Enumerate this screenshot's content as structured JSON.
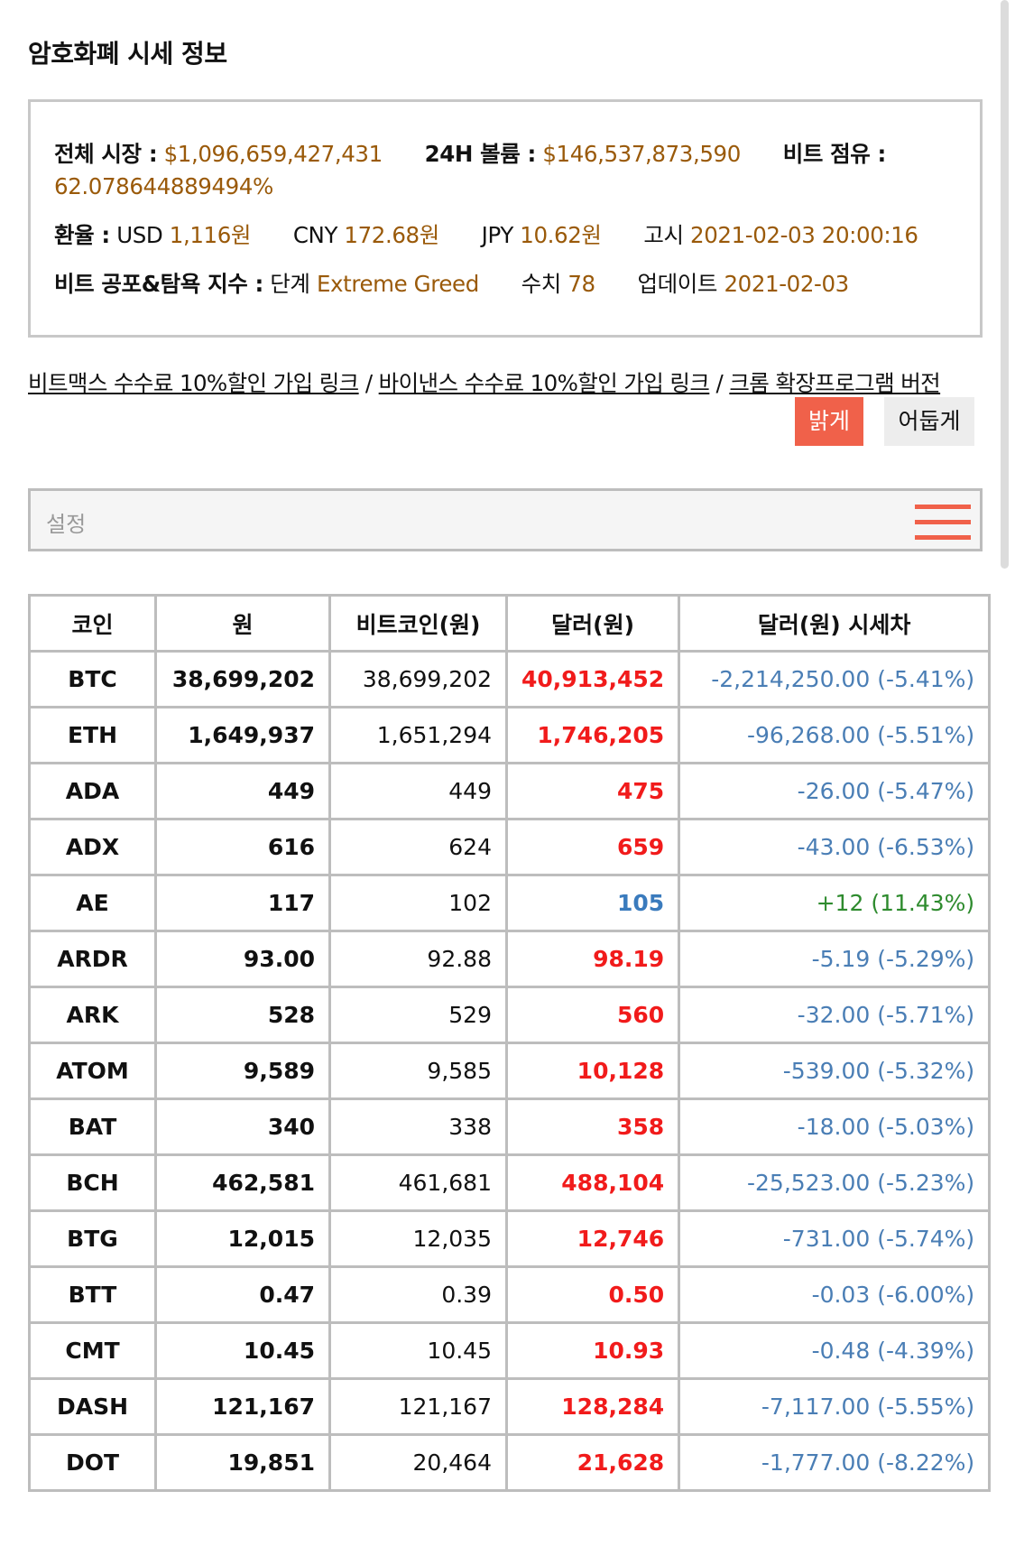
{
  "page": {
    "title": "암호화폐 시세 정보"
  },
  "market": {
    "total_label": "전체 시장 :",
    "total_value": "$1,096,659,427,431",
    "volume_label": "24H 볼륨 :",
    "volume_value": "$146,537,873,590",
    "dominance_label": "비트 점유 :",
    "dominance_value": "62.078644889494%",
    "fx_label": "환율 :",
    "usd_label": "USD",
    "usd_value": "1,116원",
    "cny_label": "CNY",
    "cny_value": "172.68원",
    "jpy_label": "JPY",
    "jpy_value": "10.62원",
    "notice_label": "고시",
    "notice_value": "2021-02-03 20:00:16",
    "fear_label": "비트 공포&탐욕 지수 :",
    "stage_label": "단계",
    "stage_value": "Extreme Greed",
    "score_label": "수치",
    "score_value": "78",
    "update_label": "업데이트",
    "update_value": "2021-02-03"
  },
  "links": {
    "bitmax": "비트맥스 수수료 10%할인 가입 링크",
    "sep1": " / ",
    "binance": "바이낸스 수수료 10%할인 가입 링크",
    "sep2": " / ",
    "chrome": "크롬 확장프로그램 버전"
  },
  "theme": {
    "light": "밝게",
    "dark": "어둡게"
  },
  "settings": {
    "label": "설정"
  },
  "colors": {
    "accent": "#f0614a",
    "up": "#f11b1b",
    "down": "#4a7eb5",
    "positive": "#2e8b2e",
    "gold": "#9a5a0a"
  },
  "icons": {
    "menu": "hamburger-menu-icon"
  },
  "table": {
    "headers": [
      "코인",
      "원",
      "비트코인(원)",
      "달러(원)",
      "달러(원) 시세차"
    ],
    "rows": [
      {
        "coin": "BTC",
        "krw": "38,699,202",
        "btc_krw": "38,699,202",
        "usd_krw": "40,913,452",
        "usd_color": "red",
        "diff": "-2,214,250.00 (-5.41%)",
        "diff_sign": "neg"
      },
      {
        "coin": "ETH",
        "krw": "1,649,937",
        "btc_krw": "1,651,294",
        "usd_krw": "1,746,205",
        "usd_color": "red",
        "diff": "-96,268.00 (-5.51%)",
        "diff_sign": "neg"
      },
      {
        "coin": "ADA",
        "krw": "449",
        "btc_krw": "449",
        "usd_krw": "475",
        "usd_color": "red",
        "diff": "-26.00 (-5.47%)",
        "diff_sign": "neg"
      },
      {
        "coin": "ADX",
        "krw": "616",
        "btc_krw": "624",
        "usd_krw": "659",
        "usd_color": "red",
        "diff": "-43.00 (-6.53%)",
        "diff_sign": "neg"
      },
      {
        "coin": "AE",
        "krw": "117",
        "btc_krw": "102",
        "usd_krw": "105",
        "usd_color": "blue",
        "diff": "+12 (11.43%)",
        "diff_sign": "pos"
      },
      {
        "coin": "ARDR",
        "krw": "93.00",
        "btc_krw": "92.88",
        "usd_krw": "98.19",
        "usd_color": "red",
        "diff": "-5.19 (-5.29%)",
        "diff_sign": "neg"
      },
      {
        "coin": "ARK",
        "krw": "528",
        "btc_krw": "529",
        "usd_krw": "560",
        "usd_color": "red",
        "diff": "-32.00 (-5.71%)",
        "diff_sign": "neg"
      },
      {
        "coin": "ATOM",
        "krw": "9,589",
        "btc_krw": "9,585",
        "usd_krw": "10,128",
        "usd_color": "red",
        "diff": "-539.00 (-5.32%)",
        "diff_sign": "neg"
      },
      {
        "coin": "BAT",
        "krw": "340",
        "btc_krw": "338",
        "usd_krw": "358",
        "usd_color": "red",
        "diff": "-18.00 (-5.03%)",
        "diff_sign": "neg"
      },
      {
        "coin": "BCH",
        "krw": "462,581",
        "btc_krw": "461,681",
        "usd_krw": "488,104",
        "usd_color": "red",
        "diff": "-25,523.00 (-5.23%)",
        "diff_sign": "neg"
      },
      {
        "coin": "BTG",
        "krw": "12,015",
        "btc_krw": "12,035",
        "usd_krw": "12,746",
        "usd_color": "red",
        "diff": "-731.00 (-5.74%)",
        "diff_sign": "neg"
      },
      {
        "coin": "BTT",
        "krw": "0.47",
        "btc_krw": "0.39",
        "usd_krw": "0.50",
        "usd_color": "red",
        "diff": "-0.03 (-6.00%)",
        "diff_sign": "neg"
      },
      {
        "coin": "CMT",
        "krw": "10.45",
        "btc_krw": "10.45",
        "usd_krw": "10.93",
        "usd_color": "red",
        "diff": "-0.48 (-4.39%)",
        "diff_sign": "neg"
      },
      {
        "coin": "DASH",
        "krw": "121,167",
        "btc_krw": "121,167",
        "usd_krw": "128,284",
        "usd_color": "red",
        "diff": "-7,117.00 (-5.55%)",
        "diff_sign": "neg"
      },
      {
        "coin": "DOT",
        "krw": "19,851",
        "btc_krw": "20,464",
        "usd_krw": "21,628",
        "usd_color": "red",
        "diff": "-1,777.00 (-8.22%)",
        "diff_sign": "neg"
      }
    ]
  }
}
